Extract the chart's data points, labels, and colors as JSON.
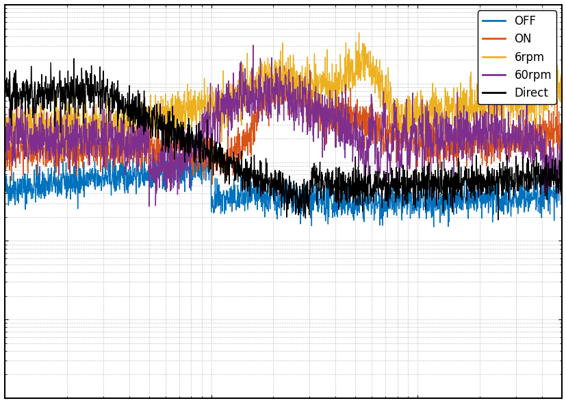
{
  "title": "",
  "legend_labels": [
    "OFF",
    "ON",
    "6rpm",
    "60rpm",
    "Direct"
  ],
  "line_colors": [
    "#0072BD",
    "#D95319",
    "#EDB120",
    "#7E2F8E",
    "#000000"
  ],
  "line_widths": [
    1.0,
    1.0,
    1.0,
    1.0,
    1.0
  ],
  "xlim": [
    1,
    500
  ],
  "ylim": [
    1e-10,
    1e-05
  ],
  "grid_color": "#b0b0b0",
  "background_color": "#ffffff",
  "legend_loc": "upper right"
}
